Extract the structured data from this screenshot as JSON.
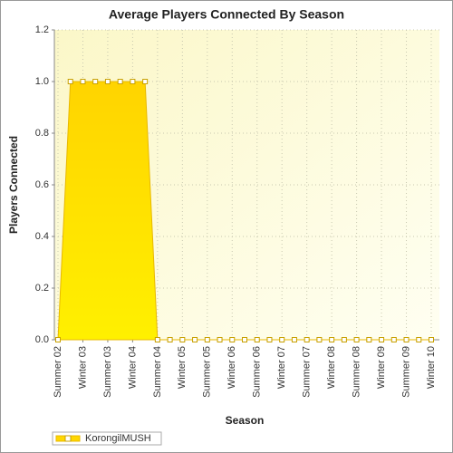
{
  "chart_data": {
    "type": "area",
    "title": "Average Players Connected By Season",
    "x_label": "Season",
    "y_label": "Players Connected",
    "categories": [
      "Summer 02",
      null,
      "Winter 03",
      null,
      "Summer 03",
      null,
      "Winter 04",
      null,
      "Summer 04",
      null,
      "Winter 05",
      null,
      "Summer 05",
      null,
      "Winter 06",
      null,
      "Summer 06",
      null,
      "Winter 07",
      null,
      "Summer 07",
      null,
      "Winter 08",
      null,
      "Summer 08",
      null,
      "Winter 09",
      null,
      "Summer 09",
      null,
      "Winter 10"
    ],
    "series": [
      {
        "name": "KorongilMUSH",
        "color": "#ffd700",
        "values": [
          0,
          1,
          1,
          1,
          1,
          1,
          1,
          1,
          0,
          0,
          0,
          0,
          0,
          0,
          0,
          0,
          0,
          0,
          0,
          0,
          0,
          0,
          0,
          0,
          0,
          0,
          0,
          0,
          0,
          0,
          0
        ]
      }
    ],
    "ylim": [
      0,
      1.2
    ],
    "yticks": [
      {
        "value": 0,
        "label": "0.0"
      },
      0.2,
      0.4,
      0.6,
      0.8,
      {
        "value": 1,
        "label": "1.0"
      },
      1.2
    ],
    "grid": true,
    "legend": "bottom-left"
  }
}
